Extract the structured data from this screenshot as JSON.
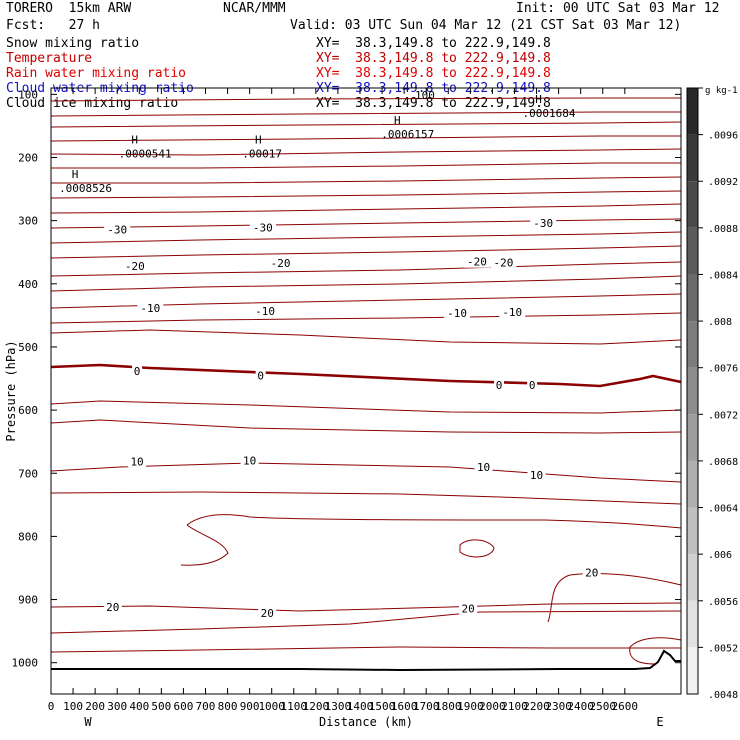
{
  "header": {
    "model": "TORERO  15km ARW",
    "fcst": "Fcst:   27 h",
    "org": "NCAR/MMM",
    "init": "Init: 00 UTC Sat 03 Mar 12",
    "valid": "Valid: 03 UTC Sun 04 Mar 12 (21 CST Sat 03 Mar 12)"
  },
  "fields": [
    {
      "name": "Snow mixing ratio",
      "xy": "XY=  38.3,149.8 to 222.9,149.8",
      "color": "#000000"
    },
    {
      "name": "Temperature",
      "xy": "XY=  38.3,149.8 to 222.9,149.8",
      "color": "#c00000"
    },
    {
      "name": "Rain water mixing ratio",
      "xy": "XY=  38.3,149.8 to 222.9,149.8",
      "color": "#e00000"
    },
    {
      "name": "Cloud water mixing ratio",
      "xy": "XY=  38.3,149.8 to 222.9,149.8",
      "color": "#1010c0"
    },
    {
      "name": "Cloud ice mixing ratio",
      "xy": "XY=  38.3,149.8 to 222.9,149.8",
      "color": "#000000"
    }
  ],
  "chart_data": {
    "type": "contour",
    "xlabel": "Distance (km)",
    "ylabel": "Pressure (hPa)",
    "x_ticks": [
      0,
      100,
      200,
      300,
      400,
      500,
      600,
      700,
      800,
      900,
      1000,
      1100,
      1200,
      1300,
      1400,
      1500,
      1600,
      1700,
      1800,
      1900,
      2000,
      2100,
      2200,
      2300,
      2400,
      2500,
      2600
    ],
    "x_tick_labels": [
      "0",
      "100",
      "200",
      "300",
      "400",
      "500",
      "600",
      "700",
      "800",
      "900",
      "1000",
      "1100",
      "1200",
      "1300",
      "1400",
      "1500",
      "1600",
      "1700",
      "1800",
      "1900",
      "2000",
      "2100",
      "2200",
      "2300",
      "2400",
      "2500",
      "2600"
    ],
    "y_ticks": [
      100,
      200,
      300,
      400,
      500,
      600,
      700,
      800,
      900,
      1000
    ],
    "y_tick_labels": [
      "100",
      "200",
      "300",
      "400",
      "500",
      "600",
      "700",
      "800",
      "900",
      "1000"
    ],
    "xlim": [
      0,
      2780
    ],
    "ylim": [
      1050,
      88
    ],
    "end_labels": {
      "left": "W",
      "right": "E"
    },
    "contour_color": "#8b0000",
    "contour_labels": [
      {
        "text": "-30",
        "x": 300,
        "p": 314
      },
      {
        "text": "-30",
        "x": 960,
        "p": 311
      },
      {
        "text": "-30",
        "x": 2230,
        "p": 304
      },
      {
        "text": "-20",
        "x": 380,
        "p": 372
      },
      {
        "text": "-20",
        "x": 1040,
        "p": 367
      },
      {
        "text": "-20",
        "x": 1930,
        "p": 365
      },
      {
        "text": "-20",
        "x": 2050,
        "p": 366
      },
      {
        "text": "-10",
        "x": 450,
        "p": 438
      },
      {
        "text": "-10",
        "x": 970,
        "p": 443
      },
      {
        "text": "-10",
        "x": 1840,
        "p": 446
      },
      {
        "text": "-10",
        "x": 2090,
        "p": 445
      },
      {
        "text": "0",
        "x": 390,
        "p": 538
      },
      {
        "text": "0",
        "x": 950,
        "p": 545
      },
      {
        "text": "0",
        "x": 2030,
        "p": 560
      },
      {
        "text": "0",
        "x": 2180,
        "p": 560
      },
      {
        "text": "10",
        "x": 390,
        "p": 681
      },
      {
        "text": "10",
        "x": 900,
        "p": 680
      },
      {
        "text": "10",
        "x": 1960,
        "p": 690
      },
      {
        "text": "10",
        "x": 2200,
        "p": 703
      },
      {
        "text": "20",
        "x": 280,
        "p": 912
      },
      {
        "text": "20",
        "x": 980,
        "p": 921
      },
      {
        "text": "20",
        "x": 1890,
        "p": 914
      },
      {
        "text": "20",
        "x": 2450,
        "p": 857
      }
    ],
    "extrema": [
      {
        "type": "H",
        "value": ".0000541",
        "x": 370,
        "p": 186
      },
      {
        "type": "H",
        "value": ".00017",
        "x": 930,
        "p": 186
      },
      {
        "type": "H",
        "value": ".0008526",
        "x": 100,
        "p": 240
      },
      {
        "type": "H",
        "value": ".0006157",
        "x": 1560,
        "p": 155
      },
      {
        "type": "H",
        "value": ".0001684",
        "x": 2200,
        "p": 122
      }
    ],
    "overlap_label": "100",
    "colorbar": {
      "unit": "g kg-1",
      "min": 0.0046,
      "max": 0.0098,
      "step": 0.0004,
      "labels": [
        ".0096",
        ".0092",
        ".0088",
        ".0084",
        ".008",
        ".0076",
        ".0072",
        ".0068",
        ".0064",
        ".006",
        ".0056",
        ".0052",
        ".0048"
      ]
    }
  }
}
